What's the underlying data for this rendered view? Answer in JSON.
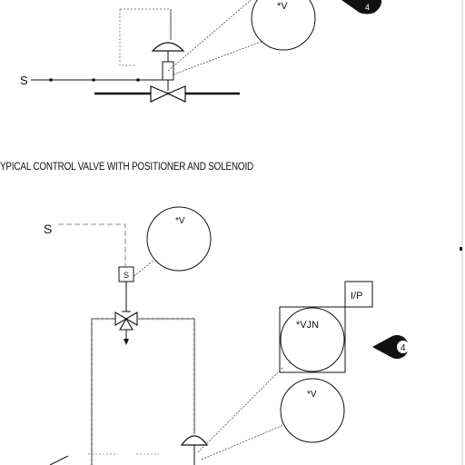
{
  "caption": "YPICAL CONTROL VALVE WITH POSITIONER AND SOLENOID",
  "top": {
    "signal_label": "S",
    "bubble_label": "*V",
    "callout_number": "4"
  },
  "bottom": {
    "signal_label": "S",
    "upper_bubble_label": "*V",
    "solenoid_label": "S",
    "converter_label": "I/P",
    "positioner_label": "*VJN",
    "lower_bubble_label": "*V",
    "callout_number": "4"
  },
  "colors": {
    "line": "#111111",
    "hatch": "#9a9a9a",
    "dashed": "#888888"
  }
}
